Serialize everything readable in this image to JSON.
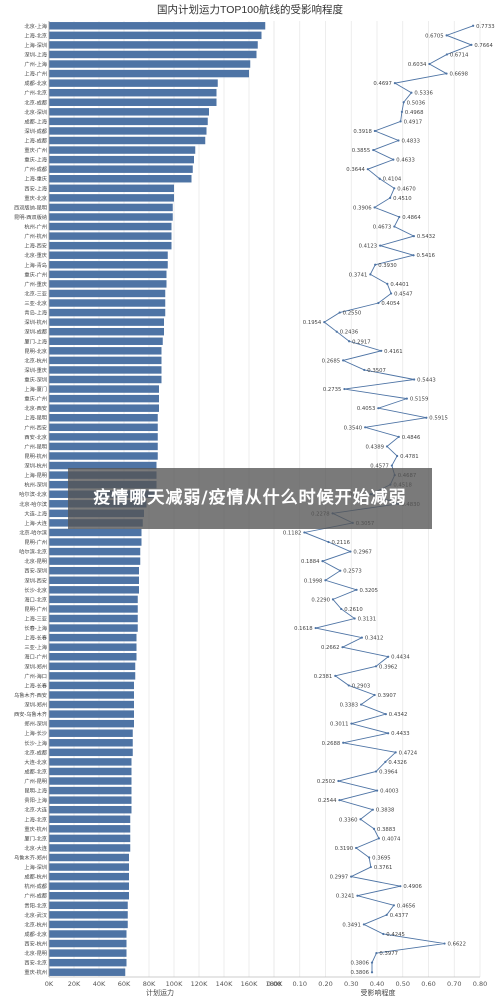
{
  "chart_data": {
    "type": "bar+line",
    "title": "国内计划运力TOP100航线的受影响程度",
    "panels": [
      {
        "type": "bar",
        "xlabel": "计划运力",
        "xticks": [
          "0K",
          "20K",
          "40K",
          "60K",
          "80K",
          "100K",
          "120K",
          "140K",
          "160K",
          "180K"
        ],
        "xlim": [
          0,
          180000
        ],
        "color": "#4e74a5"
      },
      {
        "type": "line",
        "xlabel": "受影响程度",
        "xticks": [
          "0.00",
          "0.10",
          "0.20",
          "0.30",
          "0.40",
          "0.50",
          "0.60",
          "0.70",
          "0.80"
        ],
        "xlim": [
          0,
          0.8
        ],
        "color": "#4e74a5"
      }
    ],
    "routes": [
      "北京-上海",
      "上海-北京",
      "上海-深圳",
      "深圳-上海",
      "广州-上海",
      "上海-广州",
      "成都-北京",
      "广州-北京",
      "北京-成都",
      "北京-深圳",
      "成都-上海",
      "深圳-成都",
      "上海-成都",
      "重庆-广州",
      "重庆-上海",
      "广州-成都",
      "上海-重庆",
      "西安-上海",
      "重庆-北京",
      "西双版纳-昆明",
      "昆明-西双版纳",
      "杭州-广州",
      "广州-杭州",
      "上海-西安",
      "北京-重庆",
      "上海-青岛",
      "重庆-广州",
      "广州-重庆",
      "北京-三亚",
      "三亚-北京",
      "青岛-上海",
      "深圳-杭州",
      "深圳-成都",
      "厦门-上海",
      "昆明-北京",
      "北京-杭州",
      "深圳-重庆",
      "重庆-深圳",
      "上海-厦门",
      "重庆-广州",
      "北京-西安",
      "上海-昆明",
      "广州-西安",
      "西安-北京",
      "广州-昆明",
      "昆明-杭州",
      "深圳-杭州",
      "上海-昆明",
      "杭州-深圳",
      "哈尔滨-北京",
      "北京-哈尔滨",
      "大连-上海",
      "上海-大连",
      "北京-哈尔滨",
      "昆明-广州",
      "哈尔滨-北京",
      "北京-昆明",
      "西安-深圳",
      "深圳-西安",
      "长沙-北京",
      "海口-北京",
      "昆明-广州",
      "上海-三亚",
      "长春-上海",
      "上海-长春",
      "三亚-上海",
      "海口-广州",
      "深圳-郑州",
      "广州-海口",
      "上海-长春",
      "乌鲁木齐-西安",
      "深圳-郑州",
      "西安-乌鲁木齐",
      "郑州-深圳",
      "上海-长沙",
      "长沙-上海",
      "北京-成都",
      "大连-北京",
      "成都-北京",
      "广州-昆明",
      "昆明-上海",
      "贵阳-上海",
      "北京-大连",
      "上海-北京",
      "重庆-杭州",
      "厦门-北京",
      "北京-大连",
      "乌鲁木齐-郑州",
      "上海-深圳",
      "成都-杭州",
      "杭州-成都",
      "广州-成都",
      "贵阳-北京",
      "北京-武汉",
      "北京-杭州",
      "成都-北京",
      "西安-杭州",
      "北京-昆明",
      "西安-北京",
      "重庆-杭州"
    ],
    "capacity": [
      173000,
      170000,
      167000,
      166000,
      161000,
      160000,
      135000,
      134000,
      134000,
      128000,
      127000,
      126000,
      125000,
      117000,
      116000,
      115000,
      114000,
      100000,
      100000,
      99000,
      99000,
      98000,
      98000,
      98000,
      95000,
      95000,
      94000,
      94000,
      93000,
      93000,
      93000,
      92000,
      92000,
      91000,
      90000,
      90000,
      90000,
      90000,
      88000,
      88000,
      88000,
      87000,
      87000,
      87000,
      87000,
      87000,
      86000,
      86000,
      86000,
      85000,
      78000,
      76000,
      75000,
      74000,
      74000,
      73000,
      73000,
      72000,
      72000,
      72000,
      71000,
      71000,
      71000,
      71000,
      70000,
      70000,
      70000,
      69000,
      69000,
      68000,
      68000,
      68000,
      68000,
      68000,
      67000,
      67000,
      67000,
      66000,
      66000,
      66000,
      66000,
      66000,
      66000,
      65000,
      65000,
      65000,
      65000,
      64000,
      64000,
      64000,
      64000,
      64000,
      63000,
      63000,
      63000,
      62000,
      62000,
      62000,
      62000,
      61000
    ],
    "impact": [
      0.7733,
      0.6705,
      0.7664,
      0.6714,
      0.6034,
      0.6698,
      0.4697,
      0.5336,
      0.5036,
      0.4968,
      0.4917,
      0.3918,
      0.4833,
      0.3855,
      0.4633,
      0.3644,
      0.4104,
      0.467,
      0.451,
      0.3906,
      0.4864,
      0.4673,
      0.5432,
      0.4123,
      0.5416,
      0.393,
      0.3741,
      0.4401,
      0.4547,
      0.4054,
      0.255,
      0.1954,
      0.2436,
      0.2917,
      0.4161,
      0.2685,
      0.3507,
      0.5443,
      0.2735,
      0.5159,
      0.4053,
      0.5915,
      0.354,
      0.4846,
      0.4389,
      0.4781,
      0.4577,
      0.4687,
      0.4518,
      0.3756,
      0.483,
      0.2278,
      0.3057,
      0.1182,
      0.2116,
      0.2967,
      0.1884,
      0.2573,
      0.1998,
      0.3205,
      0.229,
      0.261,
      0.3131,
      0.1618,
      0.3412,
      0.2662,
      0.4434,
      0.3962,
      0.2381,
      0.2903,
      0.3907,
      0.3383,
      0.4342,
      0.3011,
      0.4433,
      0.2688,
      0.4724,
      0.4326,
      0.3964,
      0.2502,
      0.4003,
      0.2544,
      0.3838,
      0.336,
      0.3883,
      0.4074,
      0.319,
      0.3695,
      0.3761,
      0.2997,
      0.4906,
      0.3241,
      0.4656,
      0.4377,
      0.3491,
      0.4245,
      0.6622,
      0.3977,
      0.3806,
      0.3806
    ]
  },
  "banner": {
    "text": "疫情哪天减弱/疫情从什么时候开始减弱"
  }
}
